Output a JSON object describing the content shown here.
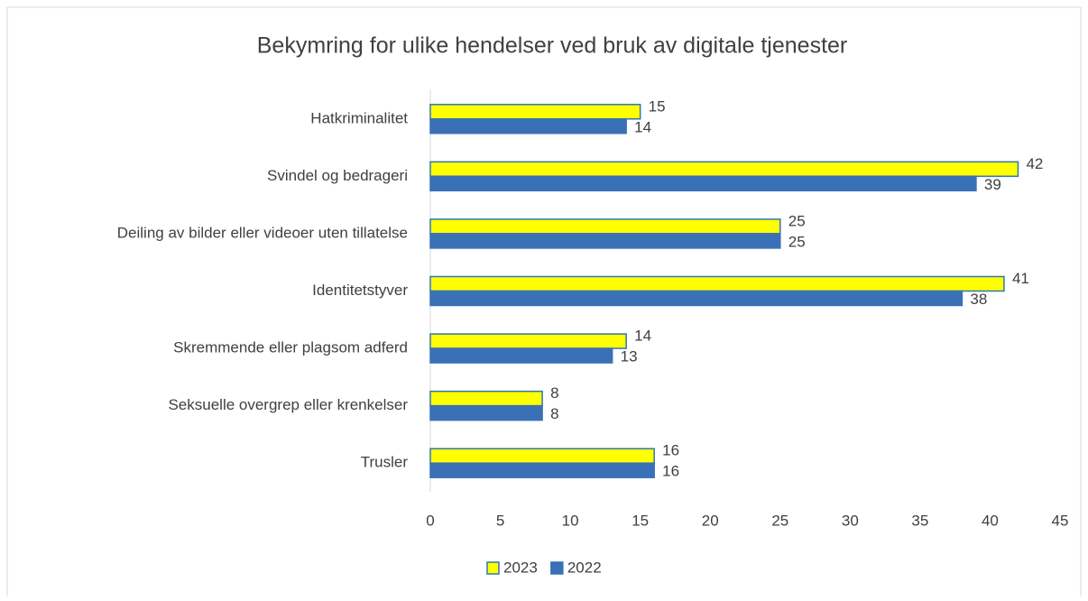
{
  "chart_data": {
    "type": "hbar",
    "title": "Bekymring for ulike hendelser ved bruk av digitale tjenester",
    "categories": [
      "Hatkriminalitet",
      "Svindel og bedrageri",
      "Deiling av bilder eller videoer uten tillatelse",
      "Identitetstyver",
      "Skremmende eller plagsom adferd",
      "Seksuelle overgrep eller krenkelser",
      "Trusler"
    ],
    "series": [
      {
        "name": "2023",
        "color": "#ffff00",
        "edge": "#2e75b6",
        "values": [
          15,
          42,
          25,
          41,
          14,
          8,
          16
        ]
      },
      {
        "name": "2022",
        "color": "#3a70b6",
        "edge": "#3a70b6",
        "values": [
          14,
          39,
          25,
          38,
          13,
          8,
          16
        ]
      }
    ],
    "xlim": [
      0,
      45
    ],
    "xticks": [
      0,
      5,
      10,
      15,
      20,
      25,
      30,
      35,
      40,
      45
    ],
    "legend": "bottom",
    "grid": false
  }
}
